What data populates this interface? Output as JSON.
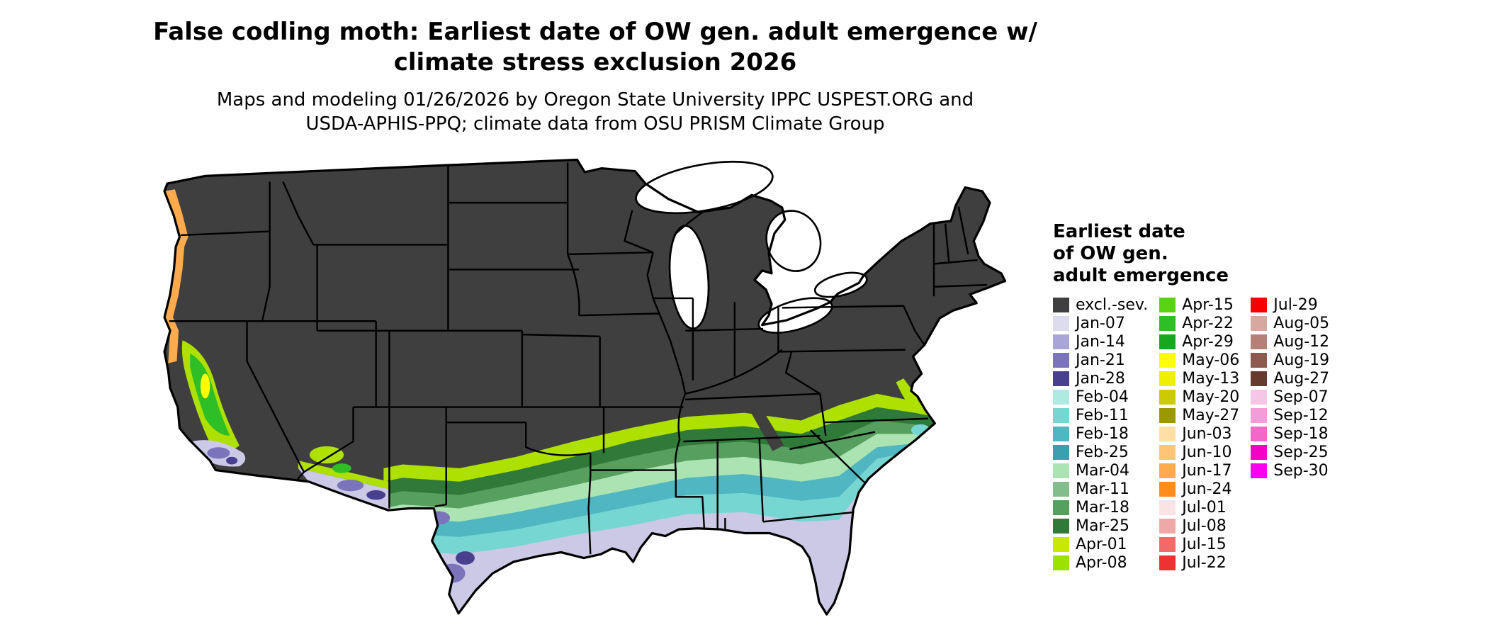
{
  "figure": {
    "title_line1": "False codling moth: Earliest date of OW gen. adult emergence w/",
    "title_line2": "climate stress exclusion 2026",
    "subtitle_line1": "Maps and modeling 01/26/2026 by Oregon State University IPPC USPEST.ORG and",
    "subtitle_line2": "USDA-APHIS-PPQ; climate data from OSU PRISM Climate Group"
  },
  "legend": {
    "title_line1": "Earliest date",
    "title_line2": "of OW gen.",
    "title_line3": "adult emergence",
    "columns": [
      {
        "entries": [
          {
            "label": "excl.-sev.",
            "color": "#3F3F3F"
          },
          {
            "label": "Jan-07",
            "color": "#DDDCEE"
          },
          {
            "label": "Jan-14",
            "color": "#A9A5D6"
          },
          {
            "label": "Jan-21",
            "color": "#7B74BB"
          },
          {
            "label": "Jan-28",
            "color": "#483F8F"
          },
          {
            "label": "Feb-04",
            "color": "#AEEAE2"
          },
          {
            "label": "Feb-11",
            "color": "#76D6D2"
          },
          {
            "label": "Feb-18",
            "color": "#4FB6C2"
          },
          {
            "label": "Feb-25",
            "color": "#3C9FAE"
          },
          {
            "label": "Mar-04",
            "color": "#ABE3B2"
          },
          {
            "label": "Mar-11",
            "color": "#83BD8B"
          },
          {
            "label": "Mar-18",
            "color": "#569F5E"
          },
          {
            "label": "Mar-25",
            "color": "#2F7A38"
          },
          {
            "label": "Apr-01",
            "color": "#C8E800"
          },
          {
            "label": "Apr-08",
            "color": "#9CE200"
          }
        ]
      },
      {
        "entries": [
          {
            "label": "Apr-15",
            "color": "#58D414"
          },
          {
            "label": "Apr-22",
            "color": "#2EBE26"
          },
          {
            "label": "Apr-29",
            "color": "#17A820"
          },
          {
            "label": "May-06",
            "color": "#FFFF00"
          },
          {
            "label": "May-13",
            "color": "#EFEF00"
          },
          {
            "label": "May-20",
            "color": "#CCCA00"
          },
          {
            "label": "May-27",
            "color": "#9B9800"
          },
          {
            "label": "Jun-03",
            "color": "#FFDFA6"
          },
          {
            "label": "Jun-10",
            "color": "#FFC576"
          },
          {
            "label": "Jun-17",
            "color": "#FFAA4C"
          },
          {
            "label": "Jun-24",
            "color": "#FF8D1E"
          },
          {
            "label": "Jul-01",
            "color": "#FAE3E3"
          },
          {
            "label": "Jul-08",
            "color": "#EFA8A8"
          },
          {
            "label": "Jul-15",
            "color": "#F16A6A"
          },
          {
            "label": "Jul-22",
            "color": "#EF3131"
          }
        ]
      },
      {
        "entries": [
          {
            "label": "Jul-29",
            "color": "#F70000"
          },
          {
            "label": "Aug-05",
            "color": "#D6A8A0"
          },
          {
            "label": "Aug-12",
            "color": "#B48078"
          },
          {
            "label": "Aug-19",
            "color": "#8E5A50"
          },
          {
            "label": "Aug-27",
            "color": "#673A30"
          },
          {
            "label": "Sep-07",
            "color": "#F5C6E5"
          },
          {
            "label": "Sep-12",
            "color": "#F39CD8"
          },
          {
            "label": "Sep-18",
            "color": "#F268C8"
          },
          {
            "label": "Sep-25",
            "color": "#F400C4"
          },
          {
            "label": "Sep-30",
            "color": "#FB00F0"
          }
        ]
      }
    ]
  },
  "map": {
    "excluded_color": "#3F3F3F",
    "border_color": "#000000",
    "water_color": "#FFFFFF"
  }
}
